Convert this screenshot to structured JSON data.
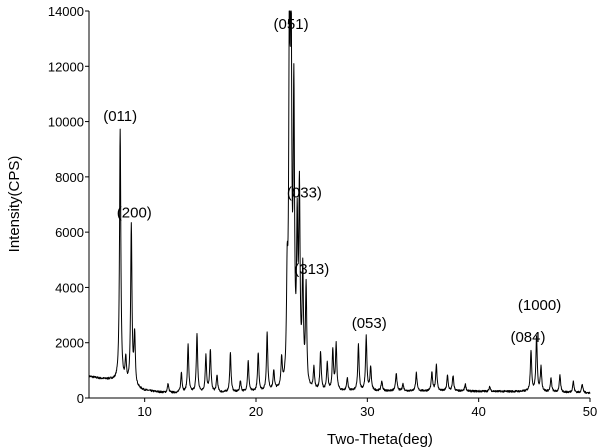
{
  "chart_data": {
    "type": "line",
    "title": "",
    "xlabel": "Two-Theta(deg)",
    "ylabel": "Intensity(CPS)",
    "xlim": [
      5,
      50
    ],
    "ylim": [
      0,
      14000
    ],
    "xticks": [
      10,
      20,
      30,
      40,
      50
    ],
    "yticks": [
      0,
      2000,
      4000,
      6000,
      8000,
      10000,
      12000,
      14000
    ],
    "grid": false,
    "legend": "none",
    "line_color": "#000000",
    "baseline": [
      [
        5.0,
        780
      ],
      [
        6.0,
        700
      ],
      [
        7.0,
        650
      ],
      [
        8.5,
        400
      ],
      [
        10.0,
        260
      ],
      [
        12.0,
        180
      ],
      [
        15.0,
        180
      ],
      [
        20.0,
        200
      ],
      [
        25.0,
        220
      ],
      [
        30.0,
        250
      ],
      [
        35.0,
        250
      ],
      [
        40.0,
        240
      ],
      [
        45.0,
        230
      ],
      [
        50.0,
        180
      ]
    ],
    "peaks": [
      {
        "x": 7.8,
        "y": 9700,
        "label": "(011)"
      },
      {
        "x": 8.3,
        "y": 1300
      },
      {
        "x": 8.8,
        "y": 6200,
        "label": "(200)"
      },
      {
        "x": 9.1,
        "y": 2200
      },
      {
        "x": 12.1,
        "y": 500
      },
      {
        "x": 13.3,
        "y": 900
      },
      {
        "x": 13.9,
        "y": 1900
      },
      {
        "x": 14.7,
        "y": 2300
      },
      {
        "x": 15.5,
        "y": 1500
      },
      {
        "x": 15.9,
        "y": 1700
      },
      {
        "x": 16.5,
        "y": 800
      },
      {
        "x": 17.7,
        "y": 1600
      },
      {
        "x": 18.6,
        "y": 600
      },
      {
        "x": 19.3,
        "y": 1300
      },
      {
        "x": 20.2,
        "y": 1600
      },
      {
        "x": 21.0,
        "y": 2300
      },
      {
        "x": 21.6,
        "y": 900
      },
      {
        "x": 22.3,
        "y": 1200
      },
      {
        "x": 22.8,
        "y": 3500
      },
      {
        "x": 23.0,
        "y": 12400
      },
      {
        "x": 23.15,
        "y": 13100,
        "label": "(051)"
      },
      {
        "x": 23.4,
        "y": 10300
      },
      {
        "x": 23.7,
        "y": 5500
      },
      {
        "x": 23.9,
        "y": 7000,
        "label": "(033)"
      },
      {
        "x": 24.2,
        "y": 4200,
        "label": "(313)"
      },
      {
        "x": 24.5,
        "y": 3800
      },
      {
        "x": 25.2,
        "y": 1000
      },
      {
        "x": 25.8,
        "y": 1600
      },
      {
        "x": 26.4,
        "y": 1200
      },
      {
        "x": 26.9,
        "y": 1700
      },
      {
        "x": 27.2,
        "y": 1900
      },
      {
        "x": 28.2,
        "y": 700
      },
      {
        "x": 29.2,
        "y": 1900
      },
      {
        "x": 29.9,
        "y": 2200,
        "label": "(053)"
      },
      {
        "x": 30.3,
        "y": 1100
      },
      {
        "x": 31.3,
        "y": 600
      },
      {
        "x": 32.6,
        "y": 900
      },
      {
        "x": 33.2,
        "y": 500
      },
      {
        "x": 34.4,
        "y": 900
      },
      {
        "x": 35.8,
        "y": 900
      },
      {
        "x": 36.2,
        "y": 1200
      },
      {
        "x": 37.2,
        "y": 800
      },
      {
        "x": 37.7,
        "y": 800
      },
      {
        "x": 38.8,
        "y": 500
      },
      {
        "x": 41.0,
        "y": 400
      },
      {
        "x": 44.7,
        "y": 1700,
        "label": "(084)"
      },
      {
        "x": 45.2,
        "y": 2200,
        "label": "(1000)"
      },
      {
        "x": 45.6,
        "y": 1100
      },
      {
        "x": 46.5,
        "y": 700
      },
      {
        "x": 47.3,
        "y": 800
      },
      {
        "x": 48.5,
        "y": 600
      },
      {
        "x": 49.3,
        "y": 500
      }
    ],
    "annotations": [
      "(011)",
      "(200)",
      "(051)",
      "(033)",
      "(313)",
      "(053)",
      "(084)",
      "(1000)"
    ]
  }
}
